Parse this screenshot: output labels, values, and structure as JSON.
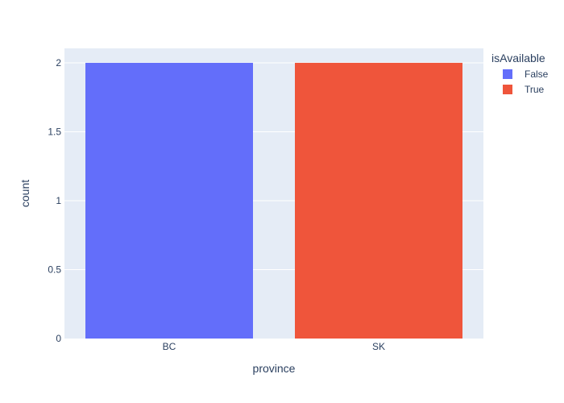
{
  "chart_data": {
    "type": "bar",
    "categories": [
      "BC",
      "SK"
    ],
    "series": [
      {
        "name": "False",
        "values": [
          2,
          null
        ],
        "color": "#636efa"
      },
      {
        "name": "True",
        "values": [
          null,
          2
        ],
        "color": "#ef553b"
      }
    ],
    "xlabel": "province",
    "ylabel": "count",
    "ylim": [
      0,
      2.105
    ],
    "yticks": [
      0,
      0.5,
      1,
      1.5,
      2
    ],
    "ytick_labels": [
      "0",
      "0.5",
      "1",
      "1.5",
      "2"
    ],
    "grid": true,
    "legend": {
      "title": "isAvailable",
      "position": "top-right"
    },
    "plot_background": "#e5ecf6"
  }
}
